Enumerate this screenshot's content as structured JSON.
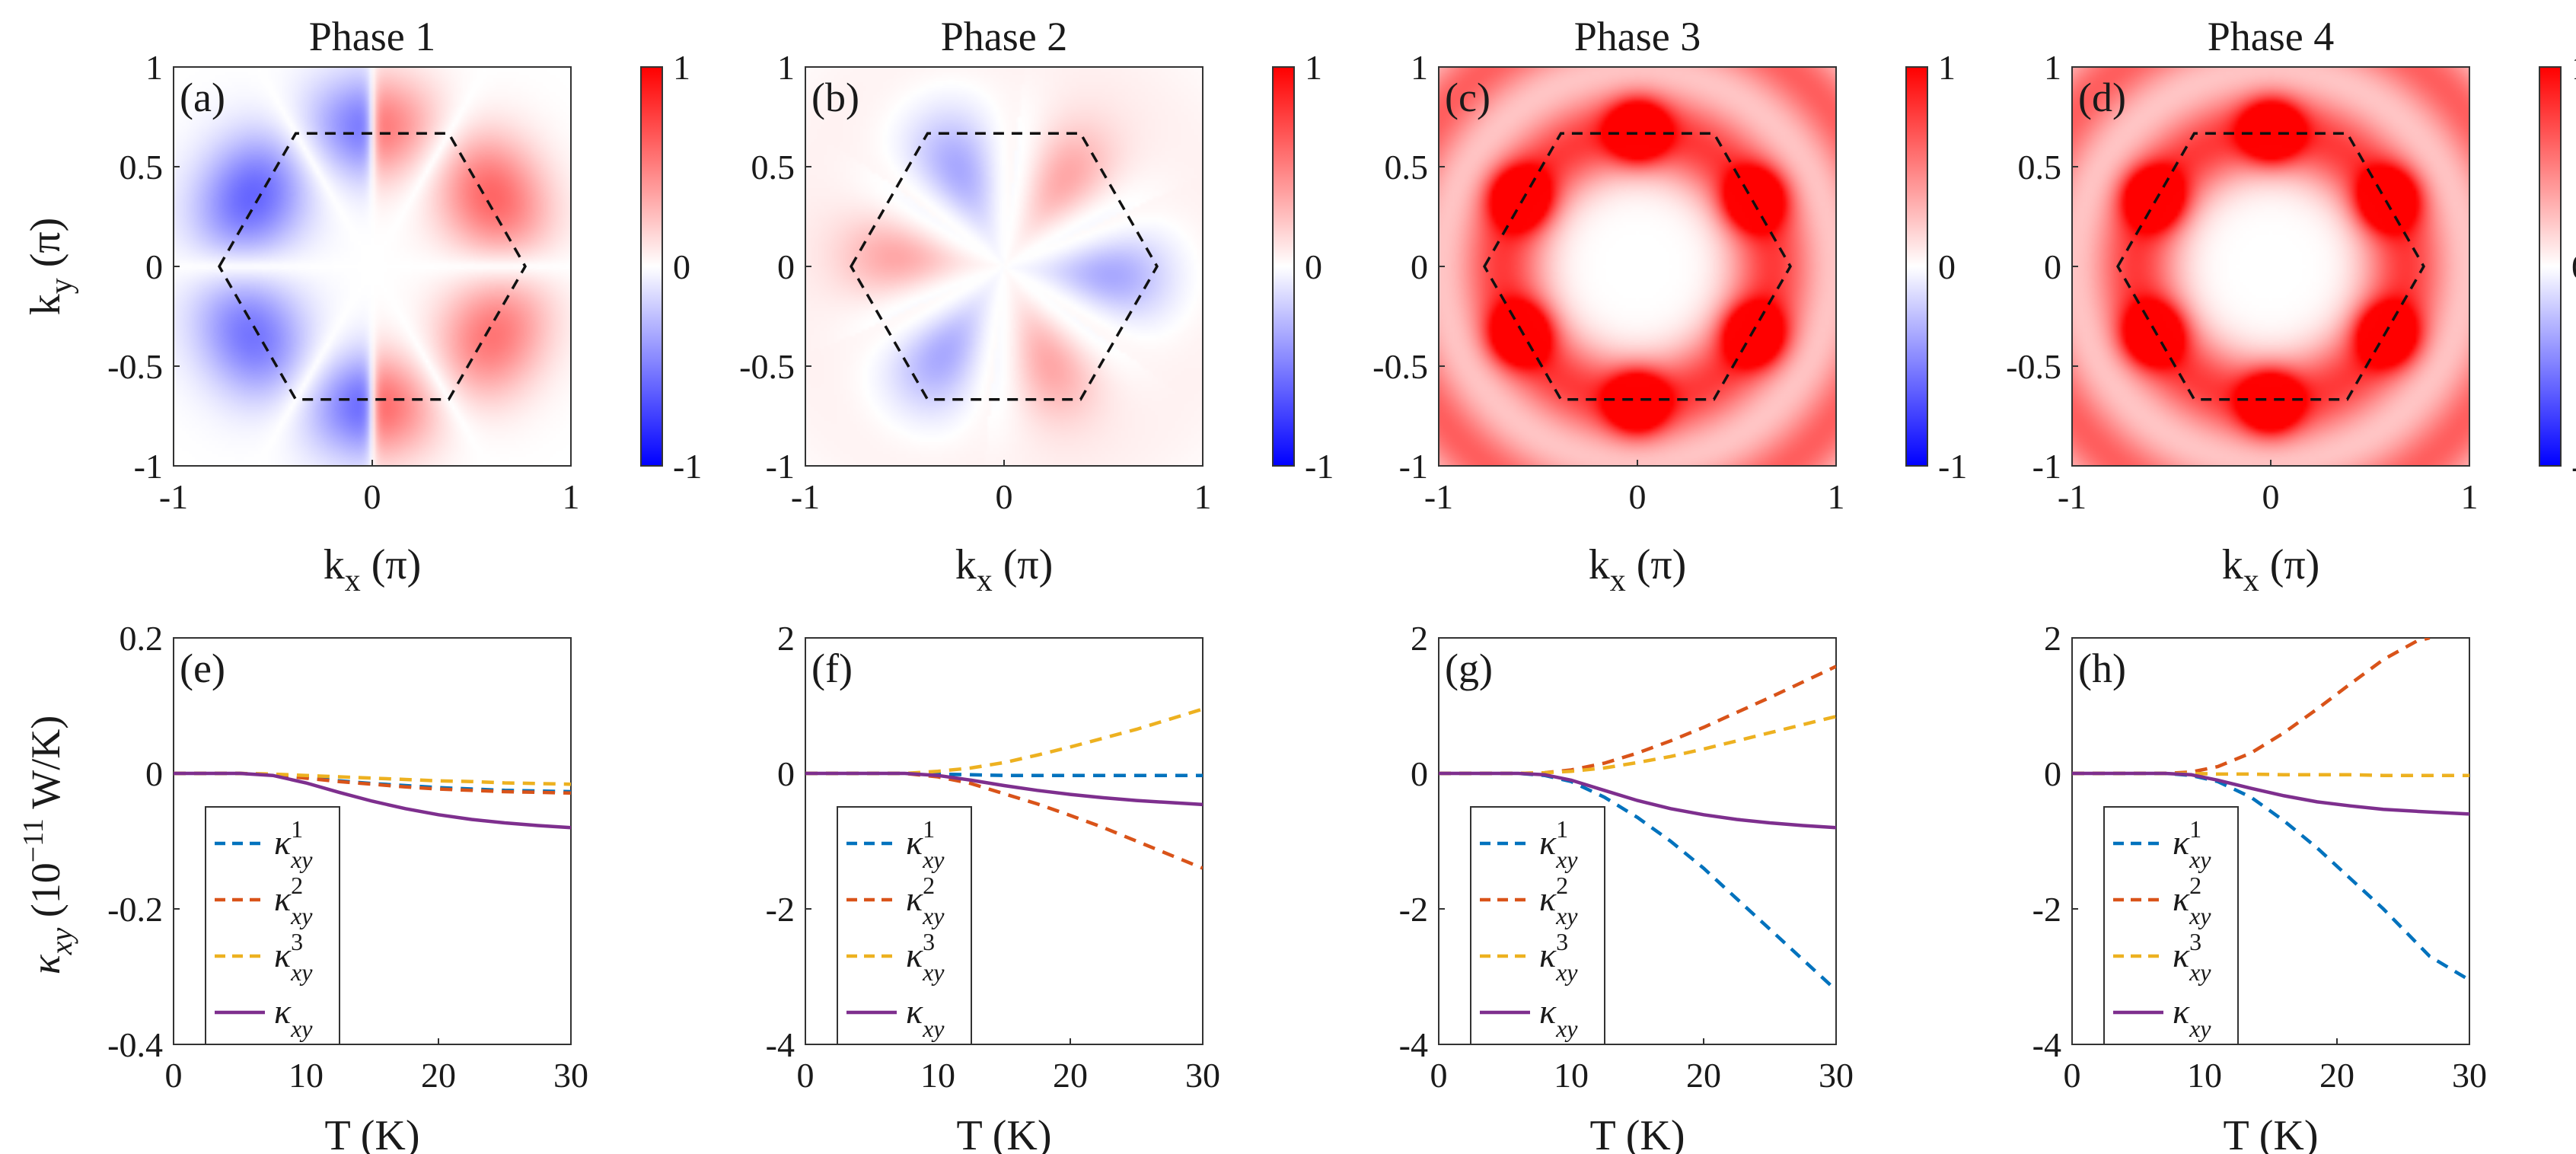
{
  "figure": {
    "colorbar": {
      "ticks": [
        "1",
        "0",
        "-1"
      ],
      "negative_color": "#0000ff",
      "zero_color": "#ffffff",
      "positive_color": "#ff0000"
    },
    "ky_label": "k",
    "ky_sub": "y",
    "ky_unit": "(π)",
    "kx_label": "k",
    "kx_sub": "x",
    "kx_unit": "(π)",
    "kappa_label": "κ",
    "kappa_sub": "xy",
    "kappa_unit_pre": "(10",
    "kappa_unit_exp": "−11",
    "kappa_unit_post": " W/K)",
    "t_label": "T (K)",
    "map_ticks": [
      "-1",
      "-0.5",
      "0",
      "0.5",
      "1"
    ],
    "map_xticks": [
      "-1",
      "0",
      "1"
    ]
  },
  "legend": {
    "base": "κ",
    "sub": "xy",
    "sup": [
      "1",
      "2",
      "3"
    ]
  },
  "chart_data": [
    {
      "type": "heatmap",
      "panel": "(a)",
      "title": "Phase 1",
      "xlabel": "kx (π)",
      "ylabel": "ky (π)",
      "xlim": [
        -1,
        1
      ],
      "ylim": [
        -1,
        1
      ],
      "clim": [
        -1,
        1
      ],
      "overlay": "dashed hexagonal Brillouin zone"
    },
    {
      "type": "heatmap",
      "panel": "(b)",
      "title": "Phase 2",
      "xlabel": "kx (π)",
      "xlim": [
        -1,
        1
      ],
      "ylim": [
        -1,
        1
      ],
      "clim": [
        -1,
        1
      ],
      "overlay": "dashed hexagonal Brillouin zone"
    },
    {
      "type": "heatmap",
      "panel": "(c)",
      "title": "Phase 3",
      "xlabel": "kx (π)",
      "xlim": [
        -1,
        1
      ],
      "ylim": [
        -1,
        1
      ],
      "clim": [
        -1,
        1
      ],
      "overlay": "dashed hexagonal Brillouin zone"
    },
    {
      "type": "heatmap",
      "panel": "(d)",
      "title": "Phase 4",
      "xlabel": "kx (π)",
      "xlim": [
        -1,
        1
      ],
      "ylim": [
        -1,
        1
      ],
      "clim": [
        -1,
        1
      ],
      "overlay": "dashed hexagonal Brillouin zone"
    },
    {
      "type": "line",
      "panel": "(e)",
      "xlabel": "T (K)",
      "ylabel": "κxy (10^-11 W/K)",
      "xlim": [
        0,
        30
      ],
      "ylim": [
        -0.4,
        0.2
      ],
      "xticks": [
        "0",
        "10",
        "20",
        "30"
      ],
      "yticks": [
        "0.2",
        "0",
        "-0.2",
        "-0.4"
      ],
      "x": [
        0,
        5,
        7.5,
        10,
        12.5,
        15,
        17.5,
        20,
        22.5,
        25,
        27.5,
        30
      ],
      "series": [
        {
          "name": "κ1xy",
          "color": "#0072bd",
          "dash": true,
          "values": [
            0,
            0,
            -0.002,
            -0.006,
            -0.011,
            -0.015,
            -0.018,
            -0.021,
            -0.023,
            -0.025,
            -0.026,
            -0.027
          ]
        },
        {
          "name": "κ2xy",
          "color": "#d95319",
          "dash": true,
          "values": [
            0,
            0,
            -0.002,
            -0.007,
            -0.012,
            -0.016,
            -0.02,
            -0.023,
            -0.025,
            -0.027,
            -0.028,
            -0.029
          ]
        },
        {
          "name": "κ3xy",
          "color": "#edb120",
          "dash": true,
          "values": [
            0,
            0,
            -0.001,
            -0.003,
            -0.005,
            -0.007,
            -0.009,
            -0.011,
            -0.012,
            -0.014,
            -0.015,
            -0.016
          ]
        },
        {
          "name": "κxy",
          "color": "#7e2f8e",
          "dash": false,
          "values": [
            0,
            0,
            -0.003,
            -0.014,
            -0.028,
            -0.041,
            -0.052,
            -0.061,
            -0.068,
            -0.073,
            -0.077,
            -0.08
          ]
        }
      ]
    },
    {
      "type": "line",
      "panel": "(f)",
      "xlabel": "T (K)",
      "xlim": [
        0,
        30
      ],
      "ylim": [
        -4,
        2
      ],
      "xticks": [
        "0",
        "10",
        "20",
        "30"
      ],
      "yticks": [
        "2",
        "0",
        "-2",
        "-4"
      ],
      "x": [
        0,
        7.5,
        10,
        12.5,
        15,
        17.5,
        20,
        22.5,
        25,
        27.5,
        30
      ],
      "series": [
        {
          "name": "κ1xy",
          "color": "#0072bd",
          "dash": true,
          "values": [
            0,
            0,
            -0.01,
            -0.02,
            -0.03,
            -0.03,
            -0.03,
            -0.03,
            -0.03,
            -0.03,
            -0.03
          ]
        },
        {
          "name": "κ2xy",
          "color": "#d95319",
          "dash": true,
          "values": [
            0,
            0,
            -0.05,
            -0.15,
            -0.3,
            -0.45,
            -0.62,
            -0.8,
            -1.0,
            -1.2,
            -1.4
          ]
        },
        {
          "name": "κ3xy",
          "color": "#edb120",
          "dash": true,
          "values": [
            0,
            0,
            0.03,
            0.08,
            0.16,
            0.27,
            0.39,
            0.52,
            0.65,
            0.8,
            0.95
          ]
        },
        {
          "name": "κxy",
          "color": "#7e2f8e",
          "dash": false,
          "values": [
            0,
            0,
            -0.03,
            -0.1,
            -0.18,
            -0.25,
            -0.31,
            -0.36,
            -0.4,
            -0.43,
            -0.46
          ]
        }
      ]
    },
    {
      "type": "line",
      "panel": "(g)",
      "xlabel": "T (K)",
      "xlim": [
        0,
        30
      ],
      "ylim": [
        -4,
        2
      ],
      "xticks": [
        "0",
        "10",
        "20",
        "30"
      ],
      "yticks": [
        "2",
        "0",
        "-2",
        "-4"
      ],
      "x": [
        0,
        6,
        8,
        10,
        12.5,
        15,
        17.5,
        20,
        22.5,
        25,
        27.5,
        30
      ],
      "series": [
        {
          "name": "κ1xy",
          "color": "#0072bd",
          "dash": true,
          "values": [
            0,
            0,
            -0.03,
            -0.12,
            -0.35,
            -0.65,
            -1.0,
            -1.4,
            -1.85,
            -2.3,
            -2.75,
            -3.2
          ]
        },
        {
          "name": "κ2xy",
          "color": "#d95319",
          "dash": true,
          "values": [
            0,
            0,
            0.01,
            0.05,
            0.15,
            0.3,
            0.48,
            0.68,
            0.9,
            1.12,
            1.35,
            1.58
          ]
        },
        {
          "name": "κ3xy",
          "color": "#edb120",
          "dash": true,
          "values": [
            0,
            0,
            0.01,
            0.03,
            0.08,
            0.16,
            0.25,
            0.36,
            0.48,
            0.6,
            0.72,
            0.84
          ]
        },
        {
          "name": "κxy",
          "color": "#7e2f8e",
          "dash": false,
          "values": [
            0,
            0,
            -0.02,
            -0.1,
            -0.25,
            -0.4,
            -0.52,
            -0.61,
            -0.68,
            -0.73,
            -0.77,
            -0.8
          ]
        }
      ]
    },
    {
      "type": "line",
      "panel": "(h)",
      "xlabel": "T (K)",
      "xlim": [
        0,
        30
      ],
      "ylim": [
        -4,
        2
      ],
      "xticks": [
        "0",
        "10",
        "20",
        "30"
      ],
      "yticks": [
        "2",
        "0",
        "-2",
        "-4"
      ],
      "x": [
        0,
        7,
        9,
        11,
        13.5,
        16,
        18.5,
        21,
        23.5,
        26,
        27,
        30
      ],
      "series": [
        {
          "name": "κ1xy",
          "color": "#0072bd",
          "dash": true,
          "values": [
            0,
            0,
            -0.03,
            -0.12,
            -0.35,
            -0.7,
            -1.1,
            -1.55,
            -2.0,
            -2.5,
            -2.7,
            -3.05
          ]
        },
        {
          "name": "κ2xy",
          "color": "#d95319",
          "dash": true,
          "values": [
            0,
            0,
            0.02,
            0.1,
            0.3,
            0.6,
            0.95,
            1.32,
            1.68,
            1.95,
            2.0,
            null
          ]
        },
        {
          "name": "κ3xy",
          "color": "#edb120",
          "dash": true,
          "values": [
            0,
            0,
            0,
            -0.01,
            -0.01,
            -0.02,
            -0.02,
            -0.02,
            -0.03,
            -0.03,
            -0.03,
            -0.03
          ]
        },
        {
          "name": "κxy",
          "color": "#7e2f8e",
          "dash": false,
          "values": [
            0,
            0,
            -0.02,
            -0.1,
            -0.22,
            -0.33,
            -0.42,
            -0.48,
            -0.53,
            -0.56,
            -0.57,
            -0.6
          ]
        }
      ]
    }
  ]
}
